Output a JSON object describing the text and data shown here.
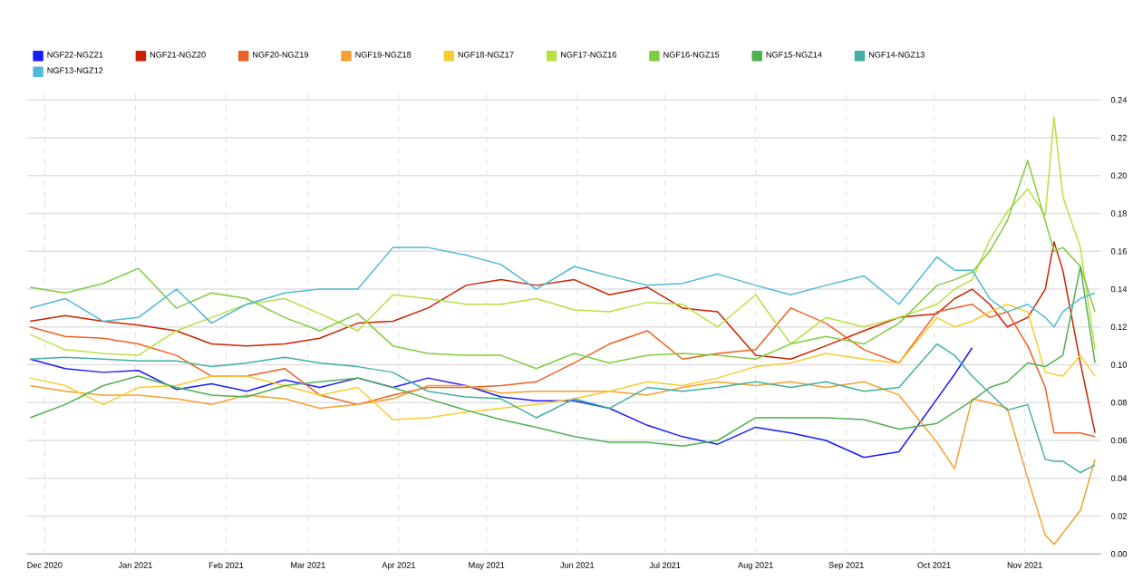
{
  "chart_data": {
    "type": "line",
    "legend": "top",
    "grid": true,
    "x": [
      "2020-11-26",
      "2020-12-08",
      "2020-12-21",
      "2021-01-02",
      "2021-01-15",
      "2021-01-27",
      "2021-02-08",
      "2021-02-21",
      "2021-03-05",
      "2021-03-18",
      "2021-03-30",
      "2021-04-11",
      "2021-04-24",
      "2021-05-06",
      "2021-05-18",
      "2021-05-31",
      "2021-06-12",
      "2021-06-25",
      "2021-07-07",
      "2021-07-19",
      "2021-08-01",
      "2021-08-13",
      "2021-08-25",
      "2021-09-07",
      "2021-09-19",
      "2021-10-02",
      "2021-10-08",
      "2021-10-14",
      "2021-10-20",
      "2021-10-26",
      "2021-11-02",
      "2021-11-08",
      "2021-11-11",
      "2021-11-14",
      "2021-11-20",
      "2021-11-25"
    ],
    "xlim": [
      "2020-11-25",
      "2021-11-27"
    ],
    "xticks": [
      {
        "value": "2020-12-01",
        "label": "Dec 2020"
      },
      {
        "value": "2021-01-01",
        "label": "Jan 2021"
      },
      {
        "value": "2021-02-01",
        "label": "Feb 2021"
      },
      {
        "value": "2021-03-01",
        "label": "Mar 2021"
      },
      {
        "value": "2021-04-01",
        "label": "Apr 2021"
      },
      {
        "value": "2021-05-01",
        "label": "May 2021"
      },
      {
        "value": "2021-06-01",
        "label": "Jun 2021"
      },
      {
        "value": "2021-07-01",
        "label": "Jul 2021"
      },
      {
        "value": "2021-08-01",
        "label": "Aug 2021"
      },
      {
        "value": "2021-09-01",
        "label": "Sep 2021"
      },
      {
        "value": "2021-10-01",
        "label": "Oct 2021"
      },
      {
        "value": "2021-11-01",
        "label": "Nov 2021"
      }
    ],
    "ylim": [
      0,
      0.245
    ],
    "yticks": [
      {
        "value": 0,
        "label": "0.00"
      },
      {
        "value": 0.02,
        "label": "0.02"
      },
      {
        "value": 0.04,
        "label": "0.04"
      },
      {
        "value": 0.06,
        "label": "0.06"
      },
      {
        "value": 0.08,
        "label": "0.08"
      },
      {
        "value": 0.1,
        "label": "0.10"
      },
      {
        "value": 0.12,
        "label": "0.12"
      },
      {
        "value": 0.14,
        "label": "0.14"
      },
      {
        "value": 0.16,
        "label": "0.16"
      },
      {
        "value": 0.18,
        "label": "0.18"
      },
      {
        "value": 0.2,
        "label": "0.20"
      },
      {
        "value": 0.22,
        "label": "0.22"
      },
      {
        "value": 0.24,
        "label": "0.24"
      }
    ],
    "series": [
      {
        "name": "NGF22-NGZ21",
        "color": "#1a1aff",
        "values": [
          0.103,
          0.098,
          0.096,
          0.097,
          0.087,
          0.09,
          0.086,
          0.092,
          0.088,
          0.093,
          0.088,
          0.093,
          0.089,
          0.083,
          0.081,
          0.081,
          0.077,
          0.068,
          0.062,
          0.058,
          0.067,
          0.064,
          0.06,
          0.051,
          0.054,
          0.082,
          0.095,
          0.109,
          null,
          null,
          null,
          null,
          null,
          null,
          null,
          null
        ]
      },
      {
        "name": "NGF21-NGZ20",
        "color": "#cc2200",
        "values": [
          0.123,
          0.126,
          0.123,
          0.121,
          0.118,
          0.111,
          0.11,
          0.111,
          0.114,
          0.122,
          0.123,
          0.13,
          0.142,
          0.145,
          0.142,
          0.145,
          0.137,
          0.141,
          0.13,
          0.128,
          0.105,
          0.103,
          0.11,
          0.118,
          0.125,
          0.127,
          0.135,
          0.14,
          0.132,
          0.12,
          0.125,
          0.14,
          0.165,
          0.15,
          0.101,
          0.064
        ]
      },
      {
        "name": "NGF20-NGZ19",
        "color": "#f06020",
        "values": [
          0.12,
          0.115,
          0.114,
          0.111,
          0.105,
          0.094,
          0.094,
          0.098,
          0.084,
          0.079,
          0.084,
          0.088,
          0.088,
          0.089,
          0.091,
          0.101,
          0.111,
          0.118,
          0.103,
          0.106,
          0.108,
          0.13,
          0.122,
          0.108,
          0.101,
          0.128,
          0.13,
          0.132,
          0.125,
          0.128,
          0.11,
          0.088,
          0.064,
          0.064,
          0.064,
          0.062
        ]
      },
      {
        "name": "NGF19-NGZ18",
        "color": "#f5a030",
        "values": [
          0.089,
          0.086,
          0.084,
          0.084,
          0.082,
          0.079,
          0.084,
          0.082,
          0.077,
          0.079,
          0.082,
          0.089,
          0.089,
          0.085,
          0.086,
          0.086,
          0.086,
          0.084,
          0.088,
          0.091,
          0.089,
          0.091,
          0.088,
          0.091,
          0.084,
          0.059,
          0.045,
          0.082,
          0.08,
          0.077,
          0.04,
          0.01,
          0.005,
          0.011,
          0.023,
          0.05
        ]
      },
      {
        "name": "NGF18-NGZ17",
        "color": "#f8cc30",
        "values": [
          0.093,
          0.089,
          0.079,
          0.088,
          0.089,
          0.094,
          0.094,
          0.089,
          0.084,
          0.088,
          0.071,
          0.072,
          0.075,
          0.077,
          0.079,
          0.082,
          0.086,
          0.091,
          0.089,
          0.093,
          0.099,
          0.101,
          0.106,
          0.103,
          0.101,
          0.125,
          0.12,
          0.123,
          0.128,
          0.132,
          0.128,
          0.096,
          0.095,
          0.094,
          0.105,
          0.094
        ]
      },
      {
        "name": "NGF17-NGZ16",
        "color": "#b8e040",
        "values": [
          0.116,
          0.108,
          0.106,
          0.105,
          0.118,
          0.125,
          0.132,
          0.135,
          0.127,
          0.118,
          0.137,
          0.135,
          0.132,
          0.132,
          0.135,
          0.129,
          0.128,
          0.133,
          0.132,
          0.12,
          0.137,
          0.111,
          0.125,
          0.12,
          0.125,
          0.132,
          0.14,
          0.145,
          0.166,
          0.181,
          0.193,
          0.179,
          0.231,
          0.189,
          0.162,
          0.108
        ]
      },
      {
        "name": "NGF16-NGZ15",
        "color": "#80cc40",
        "values": [
          0.141,
          0.138,
          0.143,
          0.151,
          0.13,
          0.138,
          0.135,
          0.125,
          0.118,
          0.127,
          0.11,
          0.106,
          0.105,
          0.105,
          0.098,
          0.106,
          0.101,
          0.105,
          0.106,
          0.105,
          0.103,
          0.111,
          0.115,
          0.111,
          0.122,
          0.142,
          0.145,
          0.149,
          0.16,
          0.176,
          0.208,
          0.176,
          0.16,
          0.162,
          0.152,
          0.128
        ]
      },
      {
        "name": "NGF15-NGZ14",
        "color": "#50b050",
        "values": [
          0.072,
          0.079,
          0.089,
          0.094,
          0.088,
          0.084,
          0.083,
          0.089,
          0.091,
          0.093,
          0.088,
          0.082,
          0.076,
          0.071,
          0.067,
          0.062,
          0.059,
          0.059,
          0.057,
          0.06,
          0.072,
          0.072,
          0.072,
          0.071,
          0.066,
          0.069,
          0.075,
          0.081,
          0.088,
          0.091,
          0.101,
          0.099,
          0.102,
          0.105,
          0.152,
          0.101
        ]
      },
      {
        "name": "NGF14-NGZ13",
        "color": "#40b0a0",
        "values": [
          0.103,
          0.104,
          0.103,
          0.102,
          0.102,
          0.099,
          0.101,
          0.104,
          0.101,
          0.099,
          0.096,
          0.086,
          0.083,
          0.082,
          0.072,
          0.082,
          0.077,
          0.088,
          0.086,
          0.088,
          0.091,
          0.088,
          0.091,
          0.086,
          0.088,
          0.111,
          0.105,
          0.094,
          0.085,
          0.076,
          0.079,
          0.05,
          0.049,
          0.049,
          0.043,
          0.047
        ]
      },
      {
        "name": "NGF13-NGZ12",
        "color": "#50b8d8",
        "values": [
          0.13,
          0.135,
          0.123,
          0.125,
          0.14,
          0.122,
          0.132,
          0.138,
          0.14,
          0.14,
          0.162,
          0.162,
          0.158,
          0.153,
          0.14,
          0.152,
          0.147,
          0.142,
          0.143,
          0.148,
          0.142,
          0.137,
          0.142,
          0.147,
          0.132,
          0.157,
          0.15,
          0.15,
          0.135,
          0.128,
          0.132,
          0.125,
          0.12,
          0.128,
          0.135,
          0.138
        ]
      }
    ]
  }
}
